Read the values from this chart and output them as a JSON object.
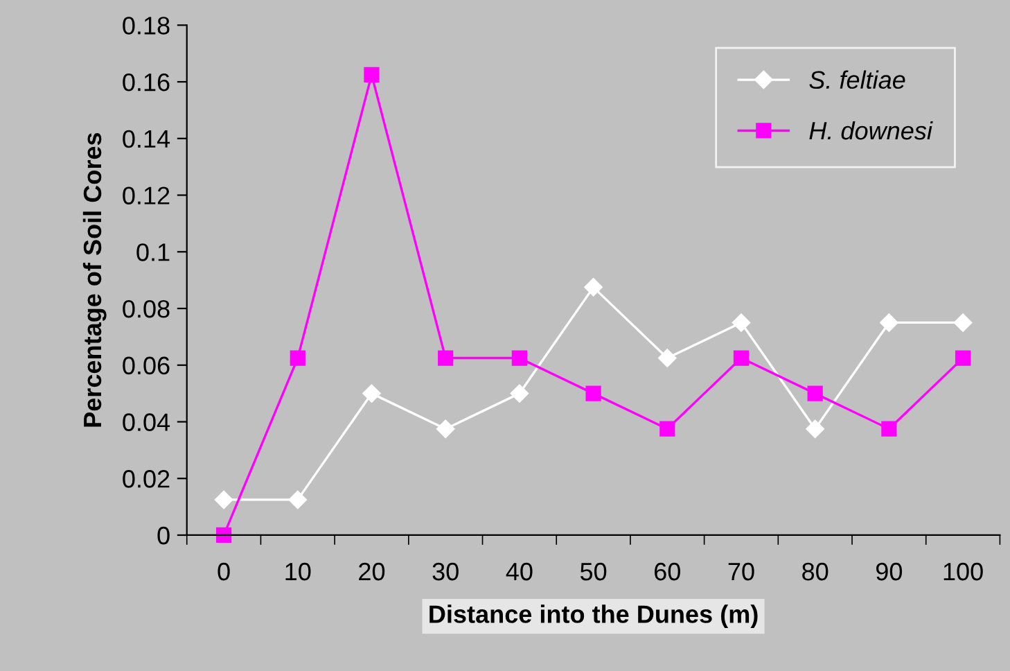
{
  "chart_data": {
    "type": "line",
    "xlabel": "Distance into the Dunes (m)",
    "ylabel": "Percentage of Soil Cores",
    "categories": [
      "0",
      "10",
      "20",
      "30",
      "40",
      "50",
      "60",
      "70",
      "80",
      "90",
      "100"
    ],
    "series": [
      {
        "name": "S. feltiae",
        "color": "#ffffff",
        "marker": "diamond",
        "values": [
          0.0125,
          0.0125,
          0.05,
          0.0375,
          0.05,
          0.0875,
          0.0625,
          0.075,
          0.0375,
          0.075,
          0.075
        ]
      },
      {
        "name": "H. downesi",
        "color": "#ff00ff",
        "marker": "square",
        "values": [
          0,
          0.0625,
          0.1625,
          0.0625,
          0.0625,
          0.05,
          0.0375,
          0.0625,
          0.05,
          0.0375,
          0.0625
        ]
      }
    ],
    "ylim": [
      0,
      0.18
    ],
    "yticks": [
      0,
      0.02,
      0.04,
      0.06,
      0.08,
      0.1,
      0.12,
      0.14,
      0.16,
      0.18
    ],
    "grid": false,
    "legend": "top right",
    "line_style": "solid"
  }
}
